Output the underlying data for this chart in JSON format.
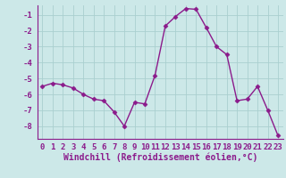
{
  "x": [
    0,
    1,
    2,
    3,
    4,
    5,
    6,
    7,
    8,
    9,
    10,
    11,
    12,
    13,
    14,
    15,
    16,
    17,
    18,
    19,
    20,
    21,
    22,
    23
  ],
  "y": [
    -5.5,
    -5.3,
    -5.4,
    -5.6,
    -6.0,
    -6.3,
    -6.4,
    -7.1,
    -8.0,
    -6.5,
    -6.6,
    -4.8,
    -1.7,
    -1.1,
    -0.6,
    -0.65,
    -1.8,
    -3.0,
    -3.5,
    -6.4,
    -6.3,
    -5.5,
    -7.0,
    -8.6
  ],
  "line_color": "#8b1a8b",
  "marker": "D",
  "marker_size": 2.5,
  "bg_color": "#cce8e8",
  "grid_color": "#aacfcf",
  "axis_color": "#8b1a8b",
  "tick_color": "#8b1a8b",
  "xlabel": "Windchill (Refroidissement éolien,°C)",
  "ylim": [
    -8.8,
    -0.4
  ],
  "yticks": [
    -8,
    -7,
    -6,
    -5,
    -4,
    -3,
    -2,
    -1
  ],
  "xlim": [
    -0.5,
    23.5
  ],
  "xticks": [
    0,
    1,
    2,
    3,
    4,
    5,
    6,
    7,
    8,
    9,
    10,
    11,
    12,
    13,
    14,
    15,
    16,
    17,
    18,
    19,
    20,
    21,
    22,
    23
  ],
  "font_size": 6.5,
  "xlabel_font_size": 7.0,
  "linewidth": 1.0
}
